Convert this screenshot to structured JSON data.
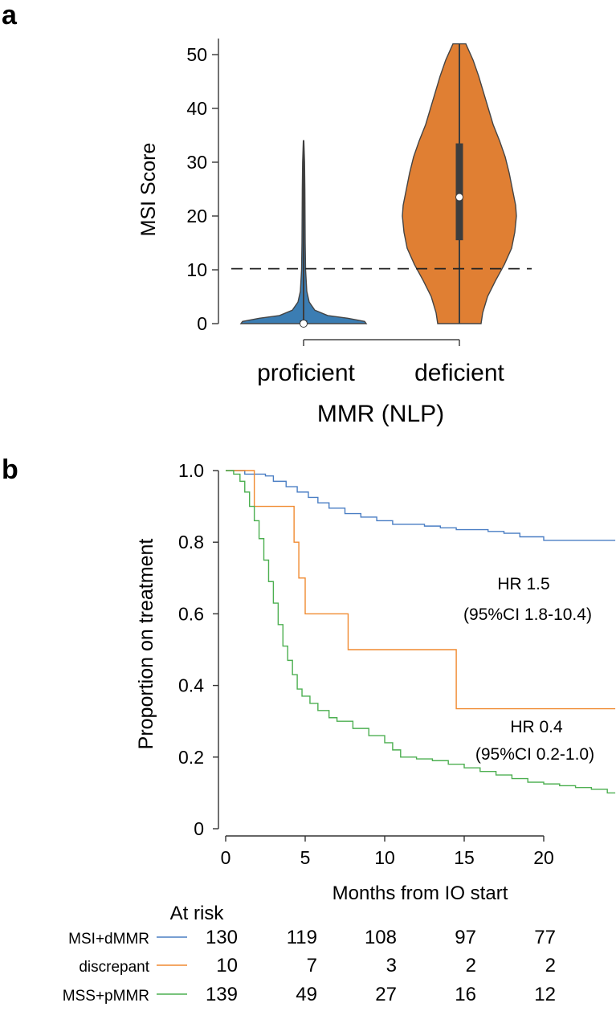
{
  "chart_data": [
    {
      "type": "violin",
      "panel_label": "a",
      "title": "",
      "xlabel": "MMR (NLP)",
      "ylabel": "MSI Score",
      "ylim": [
        0,
        52
      ],
      "yticks": [
        0,
        10,
        20,
        30,
        40,
        50
      ],
      "threshold": 10.2,
      "groups": [
        {
          "name": "proficient",
          "color": "#3b7db3",
          "median": 0,
          "q1": 0,
          "q3": 0.6,
          "whisker_low": 0,
          "whisker_high": 34
        },
        {
          "name": "deficient",
          "color": "#e07f33",
          "median": 23.5,
          "q1": 15.5,
          "q3": 33.5,
          "whisker_low": 0,
          "whisker_high": 52
        }
      ]
    },
    {
      "type": "line",
      "subtype": "kaplan-meier step",
      "panel_label": "b",
      "title": "",
      "xlabel": "Months from IO start",
      "ylabel": "Proportion on treatment",
      "xlim": [
        0,
        24.5
      ],
      "ylim": [
        0,
        1.0
      ],
      "xticks": [
        0,
        5,
        10,
        15,
        20
      ],
      "yticks": [
        0,
        0.2,
        0.4,
        0.6,
        0.8,
        1.0
      ],
      "ytick_labels": [
        "0",
        "0.2",
        "0.4",
        "0.6",
        "0.8",
        "1.0"
      ],
      "series": [
        {
          "name": "MSI+dMMR",
          "color": "#4a7ec4",
          "points": [
            [
              0,
              1.0
            ],
            [
              1.2,
              0.99
            ],
            [
              2.5,
              0.985
            ],
            [
              3.0,
              0.97
            ],
            [
              3.8,
              0.955
            ],
            [
              4.5,
              0.94
            ],
            [
              5.2,
              0.925
            ],
            [
              5.8,
              0.91
            ],
            [
              6.5,
              0.895
            ],
            [
              7.5,
              0.88
            ],
            [
              8.5,
              0.87
            ],
            [
              9.5,
              0.86
            ],
            [
              10.5,
              0.85
            ],
            [
              12.5,
              0.845
            ],
            [
              13.5,
              0.84
            ],
            [
              14.5,
              0.835
            ],
            [
              16.5,
              0.83
            ],
            [
              17.5,
              0.825
            ],
            [
              18.5,
              0.815
            ],
            [
              20.0,
              0.805
            ],
            [
              24.5,
              0.805
            ]
          ]
        },
        {
          "name": "discrepant",
          "color": "#f08a30",
          "points": [
            [
              0,
              1.0
            ],
            [
              1.8,
              0.9
            ],
            [
              4.3,
              0.8
            ],
            [
              4.6,
              0.7
            ],
            [
              5.0,
              0.6
            ],
            [
              7.7,
              0.5
            ],
            [
              14.5,
              0.335
            ],
            [
              24.5,
              0.335
            ]
          ]
        },
        {
          "name": "MSS+pMMR",
          "color": "#4caf50",
          "points": [
            [
              0,
              1.0
            ],
            [
              0.5,
              0.99
            ],
            [
              0.9,
              0.97
            ],
            [
              1.2,
              0.94
            ],
            [
              1.5,
              0.9
            ],
            [
              1.8,
              0.86
            ],
            [
              2.1,
              0.81
            ],
            [
              2.4,
              0.75
            ],
            [
              2.7,
              0.69
            ],
            [
              3.0,
              0.63
            ],
            [
              3.3,
              0.57
            ],
            [
              3.6,
              0.51
            ],
            [
              3.9,
              0.47
            ],
            [
              4.2,
              0.43
            ],
            [
              4.5,
              0.39
            ],
            [
              4.8,
              0.37
            ],
            [
              5.3,
              0.35
            ],
            [
              5.8,
              0.33
            ],
            [
              6.5,
              0.31
            ],
            [
              7.0,
              0.3
            ],
            [
              8.0,
              0.28
            ],
            [
              9.0,
              0.26
            ],
            [
              10.0,
              0.24
            ],
            [
              10.5,
              0.22
            ],
            [
              11.0,
              0.2
            ],
            [
              12.0,
              0.195
            ],
            [
              13.0,
              0.19
            ],
            [
              14.0,
              0.18
            ],
            [
              15.0,
              0.17
            ],
            [
              16.0,
              0.16
            ],
            [
              17.0,
              0.15
            ],
            [
              18.0,
              0.14
            ],
            [
              19.0,
              0.13
            ],
            [
              20.0,
              0.125
            ],
            [
              21.0,
              0.12
            ],
            [
              22.0,
              0.115
            ],
            [
              23.0,
              0.11
            ],
            [
              24.0,
              0.1
            ],
            [
              24.5,
              0.1
            ]
          ]
        }
      ],
      "annotations": [
        {
          "line1": "HR  1.5",
          "line2": "(95%CI 1.8-10.4)"
        },
        {
          "line1": "HR  0.4",
          "line2": "(95%CI 0.2-1.0)"
        }
      ],
      "risk_table": {
        "title": "At risk",
        "rows": [
          {
            "label": "MSI+dMMR",
            "values": [
              "130",
              "119",
              "108",
              "97",
              "77"
            ]
          },
          {
            "label": "discrepant",
            "values": [
              "10",
              "7",
              "3",
              "2",
              "2"
            ]
          },
          {
            "label": "MSS+pMMR",
            "values": [
              "139",
              "49",
              "27",
              "16",
              "12"
            ]
          }
        ]
      }
    }
  ]
}
